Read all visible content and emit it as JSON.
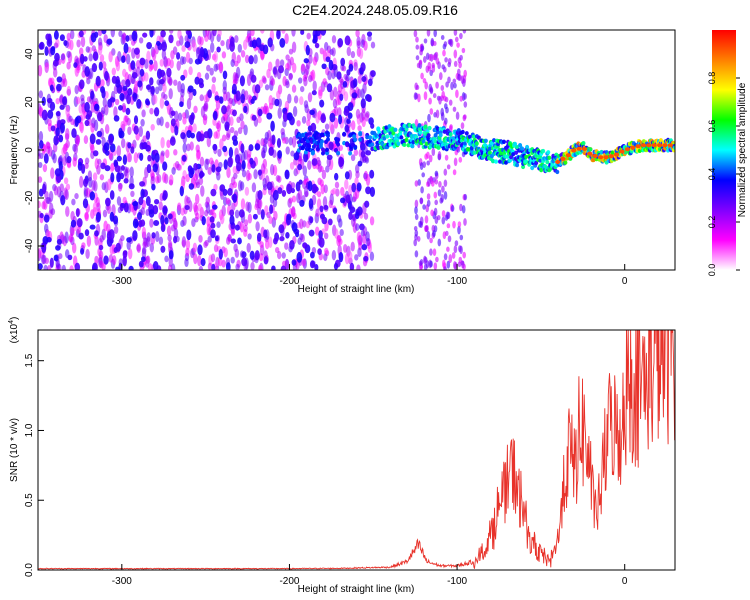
{
  "title": "C2E4.2024.248.05.09.R16",
  "chart_data": [
    {
      "type": "heatmap",
      "xlabel": "Height of straight line (km)",
      "ylabel": "Frequency (Hz)",
      "xlim": [
        -350,
        30
      ],
      "ylim": [
        -50,
        50
      ],
      "x_ticks": [
        -300,
        -200,
        -100,
        0
      ],
      "y_ticks": [
        -40,
        -20,
        0,
        20,
        40
      ],
      "colorbar": {
        "label": "Normalized spectral amplitude",
        "range": [
          0,
          1
        ],
        "ticks": [
          "0.0",
          "0.2",
          "0.4",
          "0.6",
          "0.8"
        ],
        "tick_values": [
          0.0,
          0.2,
          0.4,
          0.6,
          0.8
        ],
        "colors": [
          "#ffffff",
          "#ff00ff",
          "#8000ff",
          "#0000ff",
          "#00ffff",
          "#00ff00",
          "#ffff00",
          "#ff8000",
          "#ff0000"
        ]
      },
      "ridge": {
        "x": [
          -195,
          -180,
          -165,
          -150,
          -140,
          -125,
          -110,
          -100,
          -90,
          -80,
          -70,
          -60,
          -50,
          -45,
          -40,
          -35,
          -30,
          -25,
          -20,
          -15,
          -10,
          -5,
          0,
          5,
          10,
          20,
          30
        ],
        "y": [
          3,
          3,
          3,
          4,
          6,
          6,
          5,
          4,
          2,
          0,
          -1,
          -3,
          -4,
          -5,
          -5,
          -3,
          0,
          1,
          -2,
          -3,
          -3,
          -2,
          0,
          1,
          2,
          2,
          2
        ]
      },
      "noise_band": {
        "x_start": -350,
        "x_end": -150
      },
      "gap": {
        "x_start": -148,
        "x_end": -128
      }
    },
    {
      "type": "line",
      "xlabel": "Height of straight line (km)",
      "ylabel": "SNR (10 * v/v)",
      "multiplier": "(x10⁴)",
      "multiplier_base": "(x10",
      "multiplier_exp": "4",
      "xlim": [
        -350,
        30
      ],
      "ylim": [
        0,
        1.72
      ],
      "x_ticks": [
        -300,
        -200,
        -100,
        0
      ],
      "y_ticks": [
        "0.0",
        "0.5",
        "1.0",
        "1.5"
      ],
      "y_tick_values": [
        0.0,
        0.5,
        1.0,
        1.5
      ],
      "color": "#e8322a",
      "series": [
        {
          "x": [
            -350,
            -300,
            -250,
            -200,
            -170,
            -140,
            -130,
            -123,
            -118,
            -110,
            -100,
            -90,
            -85,
            -80,
            -75,
            -72,
            -68,
            -65,
            -62,
            -58,
            -55,
            -50,
            -45,
            -40,
            -37,
            -33,
            -30,
            -26,
            -22,
            -18,
            -15,
            -12,
            -8,
            -4,
            0,
            5,
            10,
            15,
            20,
            25,
            30
          ],
          "y": [
            0.01,
            0.01,
            0.01,
            0.01,
            0.012,
            0.02,
            0.06,
            0.18,
            0.06,
            0.03,
            0.03,
            0.06,
            0.12,
            0.25,
            0.45,
            0.55,
            0.7,
            0.65,
            0.5,
            0.3,
            0.18,
            0.12,
            0.06,
            0.2,
            0.55,
            0.85,
            0.75,
            1.05,
            0.85,
            0.4,
            0.5,
            0.8,
            1.1,
            0.9,
            1.25,
            1.4,
            1.3,
            1.45,
            1.55,
            1.6,
            1.62
          ]
        }
      ]
    }
  ]
}
